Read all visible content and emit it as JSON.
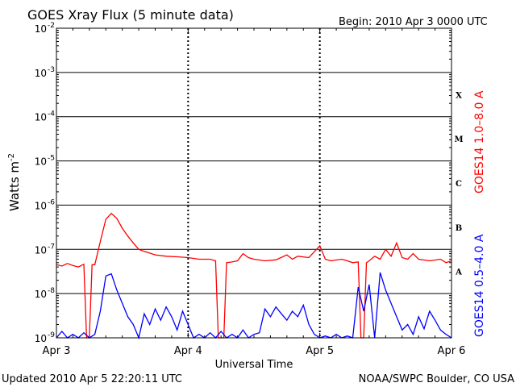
{
  "chart_data": {
    "type": "line",
    "title": "GOES Xray Flux (5 minute data)",
    "begin_text": "Begin:  2010 Apr 3 0000 UTC",
    "xlabel": "Universal Time",
    "ylabel": "Watts m",
    "ylabel_superscript": "-2",
    "y_scale": "log",
    "ylim": [
      1e-09,
      0.01
    ],
    "xlim_hours": [
      0,
      72
    ],
    "x_tick_labels": [
      "Apr 3",
      "Apr 4",
      "Apr 5",
      "Apr 6"
    ],
    "y_tick_labels": [
      {
        "base": "10",
        "exp": "-9"
      },
      {
        "base": "10",
        "exp": "-8"
      },
      {
        "base": "10",
        "exp": "-7"
      },
      {
        "base": "10",
        "exp": "-6"
      },
      {
        "base": "10",
        "exp": "-5"
      },
      {
        "base": "10",
        "exp": "-4"
      },
      {
        "base": "10",
        "exp": "-3"
      },
      {
        "base": "10",
        "exp": "-2"
      }
    ],
    "flare_classes": [
      {
        "label": "A",
        "decade": -7.5
      },
      {
        "label": "B",
        "decade": -6.5
      },
      {
        "label": "C",
        "decade": -5.5
      },
      {
        "label": "M",
        "decade": -4.5
      },
      {
        "label": "X",
        "decade": -3.5
      }
    ],
    "grid": true,
    "series": [
      {
        "name": "GOES14 1.0–8.0 A",
        "color": "#ff0000",
        "points": [
          [
            0,
            4.5e-08
          ],
          [
            1,
            4.2e-08
          ],
          [
            2,
            4.8e-08
          ],
          [
            3,
            4.3e-08
          ],
          [
            4,
            4e-08
          ],
          [
            5,
            4.6e-08
          ],
          [
            5.5,
            1e-09
          ],
          [
            6,
            1e-09
          ],
          [
            6.5,
            4.5e-08
          ],
          [
            7,
            4.5e-08
          ],
          [
            8,
            1.5e-07
          ],
          [
            9,
            4.8e-07
          ],
          [
            10,
            6.5e-07
          ],
          [
            11,
            5e-07
          ],
          [
            12,
            3e-07
          ],
          [
            13,
            2e-07
          ],
          [
            14,
            1.4e-07
          ],
          [
            15,
            1e-07
          ],
          [
            16,
            9e-08
          ],
          [
            18,
            7.5e-08
          ],
          [
            20,
            7e-08
          ],
          [
            22,
            6.8e-08
          ],
          [
            24,
            6.5e-08
          ],
          [
            26,
            6e-08
          ],
          [
            28,
            6e-08
          ],
          [
            29,
            5.5e-08
          ],
          [
            29.5,
            1e-09
          ],
          [
            30.5,
            1e-09
          ],
          [
            31,
            5e-08
          ],
          [
            32,
            5.2e-08
          ],
          [
            33,
            5.5e-08
          ],
          [
            34,
            8e-08
          ],
          [
            35,
            6.5e-08
          ],
          [
            36,
            6e-08
          ],
          [
            38,
            5.5e-08
          ],
          [
            40,
            5.8e-08
          ],
          [
            42,
            7.5e-08
          ],
          [
            43,
            6e-08
          ],
          [
            44,
            7e-08
          ],
          [
            46,
            6.5e-08
          ],
          [
            48,
            1.2e-07
          ],
          [
            49,
            6e-08
          ],
          [
            50,
            5.5e-08
          ],
          [
            52,
            6e-08
          ],
          [
            53,
            5.5e-08
          ],
          [
            54,
            5e-08
          ],
          [
            55,
            5.2e-08
          ],
          [
            55.5,
            1e-09
          ],
          [
            56,
            1e-09
          ],
          [
            56.5,
            5e-08
          ],
          [
            57,
            5.5e-08
          ],
          [
            58,
            7e-08
          ],
          [
            59,
            6e-08
          ],
          [
            60,
            1e-07
          ],
          [
            61,
            7e-08
          ],
          [
            62,
            1.4e-07
          ],
          [
            63,
            6.5e-08
          ],
          [
            64,
            6e-08
          ],
          [
            65,
            8e-08
          ],
          [
            66,
            6e-08
          ],
          [
            68,
            5.5e-08
          ],
          [
            70,
            6e-08
          ],
          [
            71,
            5e-08
          ],
          [
            72,
            5.5e-08
          ]
        ]
      },
      {
        "name": "GOES14 0.5–4.0 A",
        "color": "#0000ff",
        "points": [
          [
            0,
            1e-09
          ],
          [
            1,
            1.4e-09
          ],
          [
            2,
            1e-09
          ],
          [
            3,
            1.2e-09
          ],
          [
            4,
            1e-09
          ],
          [
            5,
            1.3e-09
          ],
          [
            6,
            1e-09
          ],
          [
            7,
            1.2e-09
          ],
          [
            8,
            4e-09
          ],
          [
            9,
            2.5e-08
          ],
          [
            10,
            2.8e-08
          ],
          [
            11,
            1.2e-08
          ],
          [
            12,
            6e-09
          ],
          [
            13,
            3e-09
          ],
          [
            14,
            2e-09
          ],
          [
            15,
            1e-09
          ],
          [
            16,
            3.5e-09
          ],
          [
            17,
            2e-09
          ],
          [
            18,
            4.5e-09
          ],
          [
            19,
            2.5e-09
          ],
          [
            20,
            5e-09
          ],
          [
            21,
            3e-09
          ],
          [
            22,
            1.5e-09
          ],
          [
            23,
            4e-09
          ],
          [
            24,
            2e-09
          ],
          [
            25,
            1e-09
          ],
          [
            26,
            1.2e-09
          ],
          [
            27,
            1e-09
          ],
          [
            28,
            1.3e-09
          ],
          [
            29,
            1e-09
          ],
          [
            30,
            1.4e-09
          ],
          [
            31,
            1e-09
          ],
          [
            32,
            1.2e-09
          ],
          [
            33,
            1e-09
          ],
          [
            34,
            1.5e-09
          ],
          [
            35,
            1e-09
          ],
          [
            36,
            1.2e-09
          ],
          [
            37,
            1.3e-09
          ],
          [
            38,
            4.5e-09
          ],
          [
            39,
            3e-09
          ],
          [
            40,
            5e-09
          ],
          [
            41,
            3.5e-09
          ],
          [
            42,
            2.5e-09
          ],
          [
            43,
            4e-09
          ],
          [
            44,
            3e-09
          ],
          [
            45,
            5.5e-09
          ],
          [
            46,
            2e-09
          ],
          [
            47,
            1.2e-09
          ],
          [
            48,
            1e-09
          ],
          [
            49,
            1.1e-09
          ],
          [
            50,
            1e-09
          ],
          [
            51,
            1.2e-09
          ],
          [
            52,
            1e-09
          ],
          [
            53,
            1.1e-09
          ],
          [
            54,
            1e-09
          ],
          [
            55,
            1.4e-08
          ],
          [
            56,
            4e-09
          ],
          [
            57,
            1.6e-08
          ],
          [
            58,
            1e-09
          ],
          [
            59,
            3e-08
          ],
          [
            60,
            1.2e-08
          ],
          [
            61,
            6e-09
          ],
          [
            62,
            3e-09
          ],
          [
            63,
            1.5e-09
          ],
          [
            64,
            2e-09
          ],
          [
            65,
            1.2e-09
          ],
          [
            66,
            3e-09
          ],
          [
            67,
            1.6e-09
          ],
          [
            68,
            4e-09
          ],
          [
            69,
            2.5e-09
          ],
          [
            70,
            1.5e-09
          ],
          [
            71,
            1.2e-09
          ],
          [
            72,
            1e-09
          ]
        ]
      }
    ]
  },
  "footer": {
    "updated": "Updated 2010 Apr  5 22:20:11 UTC",
    "source": "NOAA/SWPC Boulder, CO USA"
  }
}
